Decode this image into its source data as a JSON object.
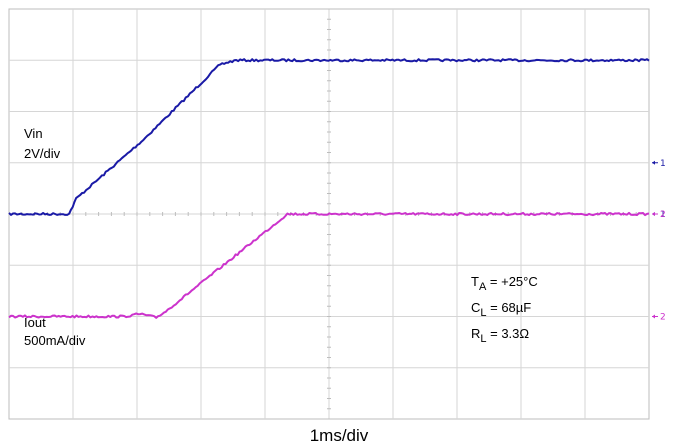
{
  "chart_data": {
    "type": "line",
    "title": "",
    "xlabel": "1ms/div",
    "ylabel": "",
    "grid": true,
    "x_divisions": 10,
    "y_divisions": 8,
    "xlim": [
      0,
      10
    ],
    "ylim": [
      -4,
      4
    ],
    "channel_labels": [
      {
        "name": "Vin",
        "scale": "2V/div"
      },
      {
        "name": "Iout",
        "scale": "500mA/div"
      }
    ],
    "annotations": [
      {
        "sym": "T",
        "sub": "A",
        "rest": " = +25°C"
      },
      {
        "sym": "C",
        "sub": "L",
        "rest": " = 68µF"
      },
      {
        "sym": "R",
        "sub": "L",
        "rest": " = 3.3Ω"
      }
    ],
    "markers": [
      {
        "text": "1",
        "color": "#1a1aa6",
        "y": 1.0
      },
      {
        "text": "1",
        "color": "#1a1aa6",
        "y": 0.0
      },
      {
        "text": "2",
        "color": "#cc33cc",
        "y": 0.0
      },
      {
        "text": "2",
        "color": "#cc33cc",
        "y": -2.0
      }
    ],
    "series": [
      {
        "color": "#1a1aa6",
        "points": [
          [
            0,
            0.0
          ],
          [
            0.94,
            0.0
          ],
          [
            1.05,
            0.3
          ],
          [
            2.1,
            1.45
          ],
          [
            3.3,
            2.92
          ],
          [
            3.55,
            3.0
          ],
          [
            10,
            3.0
          ]
        ]
      },
      {
        "color": "#cc33cc",
        "points": [
          [
            0,
            -2.0
          ],
          [
            1.8,
            -2.0
          ],
          [
            2.05,
            -1.95
          ],
          [
            2.3,
            -2.02
          ],
          [
            2.45,
            -1.9
          ],
          [
            4.35,
            0.0
          ],
          [
            10,
            0.0
          ]
        ]
      }
    ]
  }
}
